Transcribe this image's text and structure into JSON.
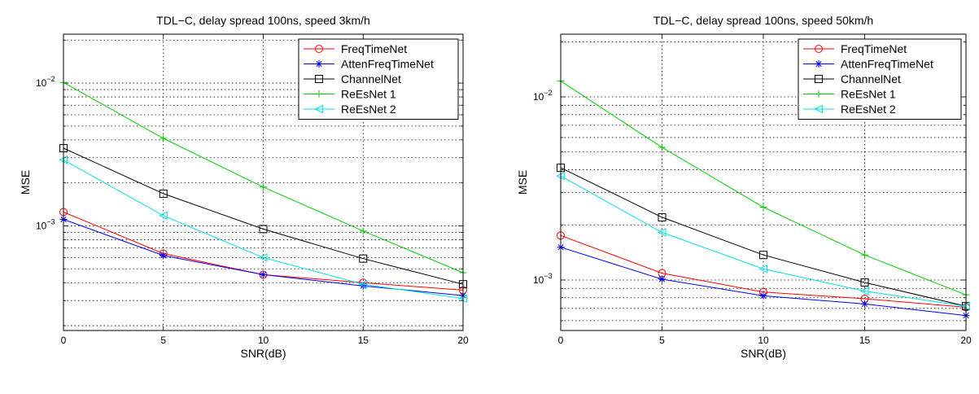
{
  "chart_data": [
    {
      "type": "line",
      "title": "TDL−C, delay spread 100ns, speed 3km/h",
      "xlabel": "SNR(dB)",
      "ylabel": "MSE",
      "xlim": [
        0,
        20
      ],
      "ylim": [
        0.000185,
        0.022
      ],
      "yscale": "log",
      "grid": true,
      "legend_position": "top-right",
      "x": [
        0,
        5,
        10,
        15,
        20
      ],
      "xticks": [
        "0",
        "5",
        "10",
        "15",
        "20"
      ],
      "yticks": [
        {
          "value": 0.001,
          "base": "10",
          "exp": "−3"
        },
        {
          "value": 0.01,
          "base": "10",
          "exp": "−2"
        }
      ],
      "series": [
        {
          "name": "FreqTimeNet",
          "color": "#ff0000",
          "marker": "circle",
          "values": [
            0.00125,
            0.00064,
            0.000455,
            0.0004,
            0.000355
          ]
        },
        {
          "name": "AttenFreqTimeNet",
          "color": "#0000ff",
          "marker": "star",
          "values": [
            0.00111,
            0.00062,
            0.000455,
            0.00038,
            0.000325
          ]
        },
        {
          "name": "ChannelNet",
          "color": "#000000",
          "marker": "square",
          "values": [
            0.0035,
            0.00168,
            0.00095,
            0.00059,
            0.00039
          ]
        },
        {
          "name": "ReEsNet 1",
          "color": "#00cc00",
          "marker": "plus",
          "values": [
            0.0101,
            0.0041,
            0.00187,
            0.00092,
            0.00047
          ]
        },
        {
          "name": "ReEsNet 2",
          "color": "#00e0e0",
          "marker": "triangle-left",
          "values": [
            0.0029,
            0.00118,
            0.0006,
            0.00039,
            0.00031
          ]
        }
      ]
    },
    {
      "type": "line",
      "title": "TDL−C, delay spread 100ns, speed 50km/h",
      "xlabel": "SNR(dB)",
      "ylabel": "MSE",
      "xlim": [
        0,
        20
      ],
      "ylim": [
        0.00053,
        0.022
      ],
      "yscale": "log",
      "grid": true,
      "legend_position": "top-right",
      "x": [
        0,
        5,
        10,
        15,
        20
      ],
      "xticks": [
        "0",
        "5",
        "10",
        "15",
        "20"
      ],
      "yticks": [
        {
          "value": 0.001,
          "base": "10",
          "exp": "−3"
        },
        {
          "value": 0.01,
          "base": "10",
          "exp": "−2"
        }
      ],
      "series": [
        {
          "name": "FreqTimeNet",
          "color": "#ff0000",
          "marker": "circle",
          "values": [
            0.00175,
            0.00109,
            0.00086,
            0.00079,
            0.00071
          ]
        },
        {
          "name": "AttenFreqTimeNet",
          "color": "#0000ff",
          "marker": "star",
          "values": [
            0.00151,
            0.00101,
            0.00082,
            0.00074,
            0.00064
          ]
        },
        {
          "name": "ChannelNet",
          "color": "#000000",
          "marker": "square",
          "values": [
            0.0041,
            0.0022,
            0.00137,
            0.00097,
            0.00072
          ]
        },
        {
          "name": "ReEsNet 1",
          "color": "#00cc00",
          "marker": "plus",
          "values": [
            0.0122,
            0.0053,
            0.0025,
            0.00137,
            0.00083
          ]
        },
        {
          "name": "ReEsNet 2",
          "color": "#00e0e0",
          "marker": "triangle-left",
          "values": [
            0.0037,
            0.00182,
            0.00115,
            0.00087,
            0.00072
          ]
        }
      ]
    }
  ]
}
